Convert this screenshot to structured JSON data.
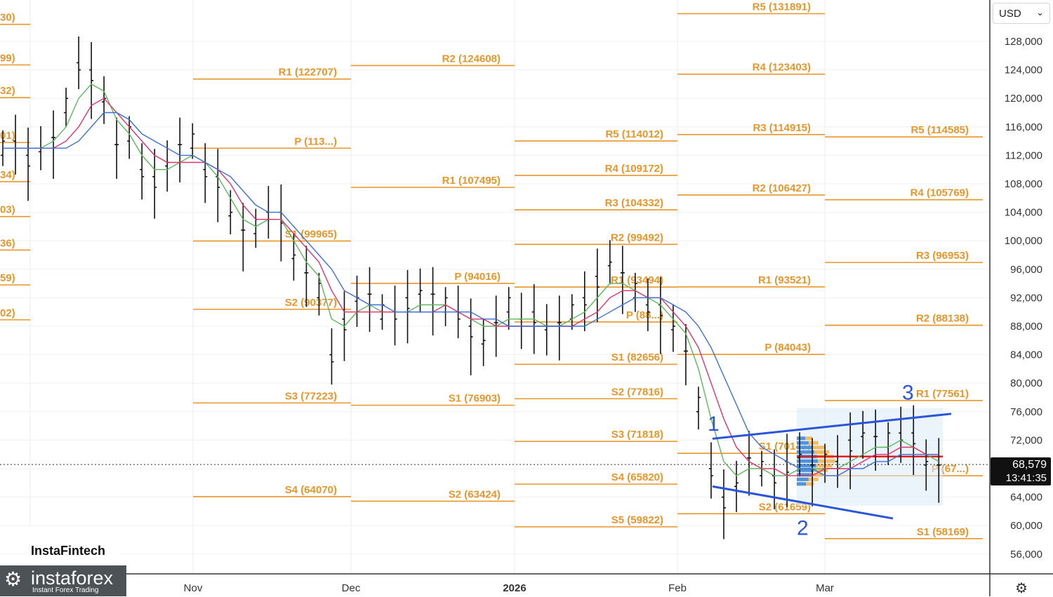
{
  "chart_data": {
    "type": "line",
    "y_axis_ticks": [
      "128,000",
      "124,000",
      "120,000",
      "116,000",
      "112,000",
      "108,000",
      "104,000",
      "100,000",
      "96,000",
      "92,000",
      "88,000",
      "84,000",
      "80,000",
      "76,000",
      "72,000",
      "68,000",
      "64,000",
      "60,000",
      "56,000"
    ],
    "x_axis_labels": [
      "Nov",
      "Dec",
      "2026",
      "Feb",
      "Mar"
    ],
    "ylim": [
      54000,
      132000
    ],
    "current_price": "68,579",
    "countdown": "13:41:35",
    "currency": "USD",
    "pivot_periods": [
      {
        "levels": [
          {
            "label": "30)",
            "value": 130400
          },
          {
            "label": "99)",
            "value": 124700
          },
          {
            "label": "32)",
            "value": 120100
          },
          {
            "label": "01)",
            "value": 113800
          },
          {
            "label": "34)",
            "value": 108300
          },
          {
            "label": "03)",
            "value": 103400
          },
          {
            "label": "36)",
            "value": 98700
          },
          {
            "label": "59)",
            "value": 93800
          },
          {
            "label": "02)",
            "value": 88900
          }
        ]
      },
      {
        "levels": [
          {
            "label": "R1 (122707)",
            "value": 122707
          },
          {
            "label": "P (113...)",
            "value": 113000
          },
          {
            "label": "S1 (99965)",
            "value": 99965
          },
          {
            "label": "S2 (90377)",
            "value": 90377
          },
          {
            "label": "S3 (77223)",
            "value": 77223
          },
          {
            "label": "S4 (64070)",
            "value": 64070
          }
        ]
      },
      {
        "levels": [
          {
            "label": "R2 (124608)",
            "value": 124608
          },
          {
            "label": "R1 (107495)",
            "value": 107495
          },
          {
            "label": "P (94016)",
            "value": 94016
          },
          {
            "label": "S1 (76903)",
            "value": 76903
          },
          {
            "label": "S2 (63424)",
            "value": 63424
          }
        ]
      },
      {
        "levels": [
          {
            "label": "R5 (114012)",
            "value": 114012
          },
          {
            "label": "R4 (109172)",
            "value": 109172
          },
          {
            "label": "R3 (104332)",
            "value": 104332
          },
          {
            "label": "R2 (99492)",
            "value": 99492
          },
          {
            "label": "R1 (93494)",
            "value": 93494
          },
          {
            "label": "P (88...)",
            "value": 88600
          },
          {
            "label": "S1 (82656)",
            "value": 82656
          },
          {
            "label": "S2 (77816)",
            "value": 77816
          },
          {
            "label": "S3 (71818)",
            "value": 71818
          },
          {
            "label": "S4 (65820)",
            "value": 65820
          },
          {
            "label": "S5 (59822)",
            "value": 59822
          }
        ]
      },
      {
        "levels": [
          {
            "label": "R5 (131891)",
            "value": 131891
          },
          {
            "label": "R4 (123403)",
            "value": 123403
          },
          {
            "label": "R3 (114915)",
            "value": 114915
          },
          {
            "label": "R2 (106427)",
            "value": 106427
          },
          {
            "label": "R1 (93521)",
            "value": 93521
          },
          {
            "label": "P (84043)",
            "value": 84043
          },
          {
            "label": "S1 (70147)",
            "value": 70147
          },
          {
            "label": "S2 (61659)",
            "value": 61659
          }
        ]
      },
      {
        "levels": [
          {
            "label": "R5 (114585)",
            "value": 114585
          },
          {
            "label": "R4 (105769)",
            "value": 105769
          },
          {
            "label": "R3 (96953)",
            "value": 96953
          },
          {
            "label": "R2 (88138)",
            "value": 88138
          },
          {
            "label": "R1 (77561)",
            "value": 77561
          },
          {
            "label": "P (67...)",
            "value": 67000
          },
          {
            "label": "S1 (58169)",
            "value": 58169
          }
        ]
      }
    ],
    "wave_labels": [
      "1",
      "2",
      "3"
    ],
    "series": [
      {
        "values": [
          113,
          114,
          111,
          113,
          114,
          119,
          125,
          123,
          120,
          113,
          115,
          110,
          108,
          111,
          113,
          114,
          110,
          108,
          104,
          101,
          102,
          104,
          103,
          98,
          95,
          93,
          84,
          88,
          92,
          92,
          90,
          90,
          91,
          93,
          92,
          91,
          90,
          87,
          86,
          88,
          91,
          89,
          89,
          88,
          88,
          90,
          92,
          94,
          97,
          95,
          93,
          91,
          90,
          88,
          84,
          77,
          68,
          63,
          66,
          69,
          68,
          67,
          68,
          70,
          68,
          69,
          69,
          71,
          73,
          72,
          72,
          73,
          72,
          69,
          68
        ]
      },
      {
        "values": [
          113,
          113,
          113,
          113,
          114,
          116,
          120,
          122,
          121,
          117,
          115,
          112,
          110,
          110,
          111,
          112,
          111,
          109,
          106,
          103,
          102,
          103,
          103,
          100,
          97,
          95,
          89,
          88,
          90,
          91,
          90,
          90,
          90,
          91,
          91,
          91,
          90,
          89,
          88,
          88,
          89,
          89,
          89,
          88,
          88,
          89,
          90,
          92,
          94,
          94,
          93,
          92,
          91,
          89,
          87,
          82,
          75,
          69,
          67,
          68,
          68,
          67,
          67,
          68,
          68,
          68,
          68,
          69,
          70,
          71,
          71,
          72,
          71,
          70,
          69
        ]
      },
      {
        "values": [
          113,
          113,
          113,
          113,
          113,
          114,
          116,
          119,
          120,
          118,
          116,
          114,
          112,
          111,
          111,
          111,
          111,
          110,
          108,
          105,
          103,
          103,
          103,
          101,
          99,
          97,
          93,
          90,
          90,
          90,
          90,
          90,
          90,
          90,
          90,
          91,
          90,
          89,
          89,
          88,
          88,
          88,
          88,
          88,
          88,
          88,
          89,
          90,
          92,
          93,
          93,
          92,
          92,
          90,
          88,
          85,
          80,
          75,
          71,
          69,
          68,
          68,
          67,
          67,
          67,
          68,
          68,
          68,
          69,
          70,
          70,
          71,
          71,
          70,
          70
        ]
      },
      {
        "values": [
          113,
          113,
          113,
          113,
          113,
          113,
          114,
          116,
          118,
          118,
          117,
          115,
          114,
          113,
          112,
          112,
          111,
          110,
          109,
          107,
          105,
          104,
          104,
          102,
          100,
          98,
          96,
          93,
          92,
          91,
          91,
          90,
          90,
          90,
          90,
          90,
          90,
          90,
          89,
          89,
          88,
          88,
          88,
          88,
          88,
          88,
          88,
          89,
          90,
          91,
          92,
          92,
          92,
          91,
          90,
          88,
          85,
          81,
          77,
          73,
          71,
          70,
          69,
          68,
          68,
          67,
          67,
          68,
          68,
          69,
          69,
          70,
          70,
          70,
          70
        ]
      }
    ]
  },
  "branding": {
    "chart_brand": "InstaFintech",
    "logo_name": "instaforex",
    "logo_sub": "Instant Forex Trading"
  }
}
